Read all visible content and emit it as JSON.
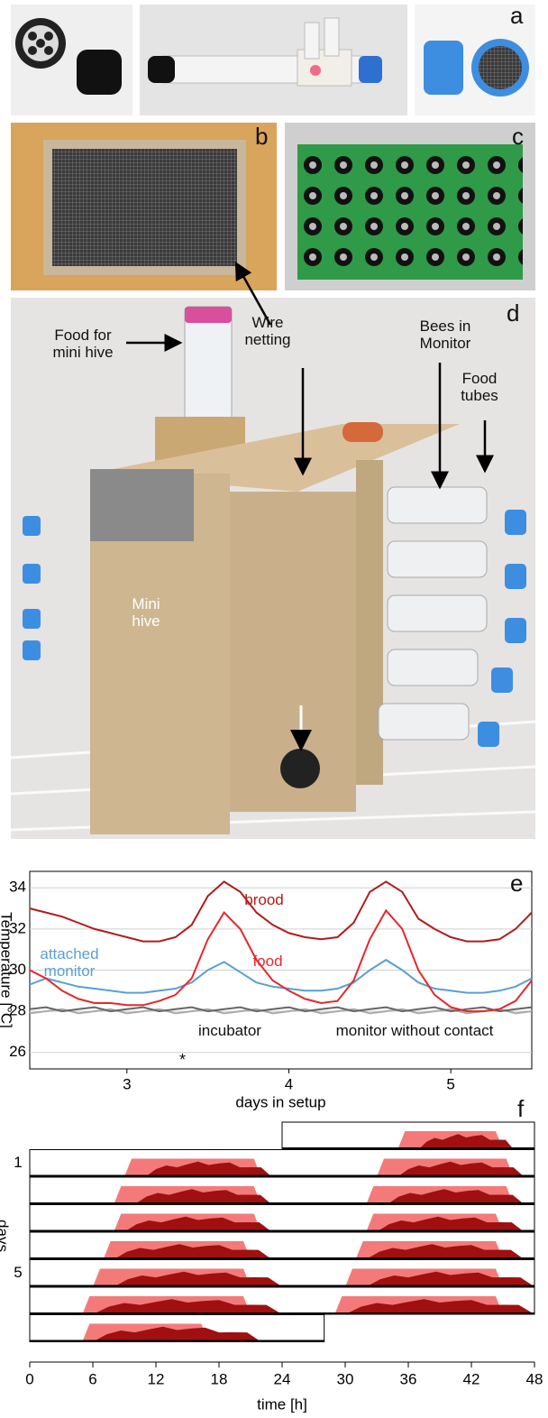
{
  "panels": {
    "a": {
      "letter": "a"
    },
    "b": {
      "letter": "b"
    },
    "c": {
      "letter": "c"
    },
    "d": {
      "letter": "d",
      "labels": [
        "Food for mini hive",
        "Wire netting",
        "Bees in Monitor",
        "Food tubes",
        "Mini hive"
      ]
    }
  },
  "chart_data": [
    {
      "type": "line",
      "panel_label": "e",
      "xlabel": "days in setup",
      "ylabel": "Temperature [°C]",
      "xlim": [
        2.4,
        5.5
      ],
      "xticks": [
        3,
        4,
        5
      ],
      "ylim": [
        25.2,
        34.8
      ],
      "yticks": [
        26,
        28,
        30,
        32,
        34
      ],
      "grid": true,
      "x": [
        2.4,
        2.5,
        2.6,
        2.7,
        2.8,
        2.9,
        3.0,
        3.1,
        3.2,
        3.3,
        3.4,
        3.5,
        3.6,
        3.7,
        3.8,
        3.9,
        4.0,
        4.1,
        4.2,
        4.3,
        4.4,
        4.5,
        4.6,
        4.7,
        4.8,
        4.9,
        5.0,
        5.1,
        5.2,
        5.3,
        5.4,
        5.5
      ],
      "series": [
        {
          "name": "brood",
          "color": "#b01c1c",
          "values": [
            33.0,
            32.8,
            32.6,
            32.3,
            32.0,
            31.8,
            31.6,
            31.4,
            31.4,
            31.6,
            32.2,
            33.6,
            34.3,
            33.8,
            32.8,
            32.2,
            31.8,
            31.6,
            31.5,
            31.6,
            32.3,
            33.8,
            34.3,
            33.8,
            32.5,
            32.0,
            31.6,
            31.4,
            31.4,
            31.5,
            32.0,
            32.8
          ]
        },
        {
          "name": "food",
          "color": "#e8262a",
          "values": [
            30.0,
            29.6,
            29.0,
            28.6,
            28.4,
            28.4,
            28.3,
            28.3,
            28.5,
            28.8,
            29.6,
            31.5,
            32.8,
            32.0,
            30.5,
            29.5,
            29.0,
            28.6,
            28.4,
            28.5,
            29.5,
            31.5,
            32.9,
            32.0,
            30.0,
            28.8,
            28.2,
            28.0,
            28.0,
            28.1,
            28.5,
            29.5
          ]
        },
        {
          "name": "attached monitor",
          "color": "#5a9fd4",
          "values": [
            29.3,
            29.6,
            29.4,
            29.2,
            29.1,
            29.0,
            28.9,
            28.9,
            29.0,
            29.1,
            29.4,
            30.0,
            30.4,
            29.9,
            29.4,
            29.2,
            29.1,
            29.0,
            29.0,
            29.1,
            29.4,
            30.0,
            30.5,
            30.0,
            29.4,
            29.1,
            29.0,
            28.9,
            28.9,
            29.0,
            29.2,
            29.6
          ]
        },
        {
          "name": "incubator",
          "color": "#666666",
          "values": [
            28.1,
            28.2,
            28.0,
            28.1,
            28.2,
            28.0,
            28.1,
            28.2,
            28.0,
            28.1,
            28.2,
            28.0,
            28.1,
            28.2,
            28.0,
            28.1,
            28.2,
            28.0,
            28.1,
            28.2,
            28.0,
            28.1,
            28.2,
            28.0,
            28.1,
            28.2,
            28.0,
            28.1,
            28.2,
            28.0,
            28.1,
            28.2
          ]
        },
        {
          "name": "monitor without contact",
          "color": "#aaaaaa",
          "values": [
            27.9,
            28.0,
            28.1,
            27.9,
            28.0,
            28.1,
            27.9,
            28.0,
            28.1,
            27.9,
            28.0,
            28.1,
            27.9,
            28.0,
            28.1,
            27.9,
            28.0,
            28.1,
            27.9,
            28.0,
            28.1,
            27.9,
            28.0,
            28.1,
            27.9,
            28.0,
            28.1,
            27.9,
            28.0,
            28.1,
            27.9,
            28.0
          ]
        }
      ],
      "annotations": [
        "*"
      ]
    },
    {
      "type": "actogram",
      "panel_label": "f",
      "xlabel": "time [h]",
      "ylabel": "days",
      "xlim": [
        0,
        48
      ],
      "xticks": [
        0,
        6,
        12,
        18,
        24,
        30,
        36,
        42,
        48
      ],
      "yticks": [
        1,
        5
      ],
      "light_color": "#f47a7a",
      "dark_color": "#a01010",
      "rows": [
        {
          "range": [
            24,
            48
          ],
          "light": [
            [
              35,
              45
            ]
          ],
          "dark": [
            [
              37,
              46
            ]
          ]
        },
        {
          "range": [
            0,
            48
          ],
          "light": [
            [
              9,
              22
            ],
            [
              33,
              46
            ]
          ],
          "dark": [
            [
              11,
              23
            ],
            [
              35,
              47
            ]
          ]
        },
        {
          "range": [
            0,
            48
          ],
          "light": [
            [
              8,
              22
            ],
            [
              32,
              46
            ]
          ],
          "dark": [
            [
              10,
              23
            ],
            [
              34,
              47
            ]
          ]
        },
        {
          "range": [
            0,
            48
          ],
          "light": [
            [
              8,
              22
            ],
            [
              32,
              45
            ]
          ],
          "dark": [
            [
              9,
              23
            ],
            [
              33,
              47
            ]
          ]
        },
        {
          "range": [
            0,
            48
          ],
          "light": [
            [
              7,
              21
            ],
            [
              31,
              45
            ]
          ],
          "dark": [
            [
              8,
              23
            ],
            [
              32,
              47
            ]
          ]
        },
        {
          "range": [
            0,
            48
          ],
          "light": [
            [
              6,
              21
            ],
            [
              30,
              45
            ]
          ],
          "dark": [
            [
              8,
              24
            ],
            [
              32,
              48
            ]
          ]
        },
        {
          "range": [
            0,
            48
          ],
          "light": [
            [
              5,
              21
            ],
            [
              29,
              45
            ]
          ],
          "dark": [
            [
              6,
              24
            ],
            [
              30,
              48
            ]
          ]
        },
        {
          "range": [
            0,
            28
          ],
          "light": [
            [
              5,
              17
            ]
          ],
          "dark": [
            [
              6,
              22
            ]
          ]
        }
      ]
    }
  ]
}
